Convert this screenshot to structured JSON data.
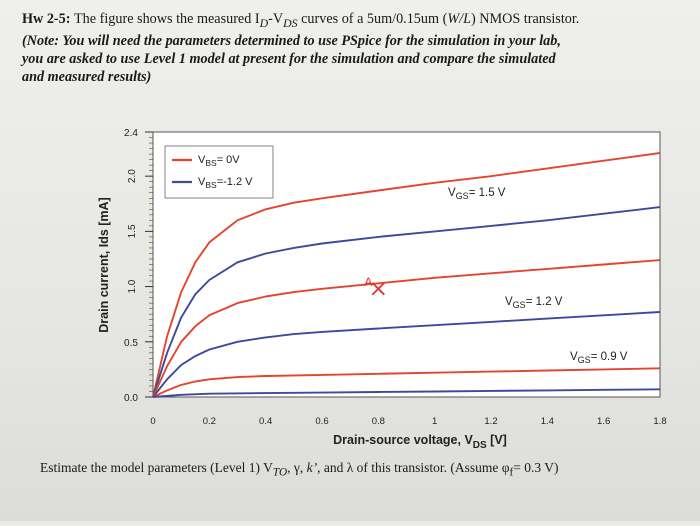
{
  "problem": {
    "label": "Hw 2-5:",
    "line1": "The figure shows the measured I",
    "id_sub": "D",
    "dash": "-V",
    "vds_sub": "DS",
    "line1_rest": " curves of a 5um/0.15um (",
    "wl": "W/L",
    "line1_end": ") NMOS transistor.",
    "note_line1": "(Note: You will need the parameters determined to use PSpice for the simulation in your lab,",
    "note_line2": "you are asked to use Level 1 model at present for the simulation and compare the simulated",
    "note_line3": "and measured results)"
  },
  "footer": {
    "text": "Estimate the model parameters (Level 1) V₀, γ, k′, and λ of this transistor. (Assume φf= 0.3 V)",
    "t1": "Estimate the model parameters (Level 1) V",
    "t1_sub": "TO",
    "t2": ", γ, ",
    "t3": "k’",
    "t4": ", and λ of this transistor. (Assume φ",
    "t4_sub": "f",
    "t5": "= 0.3 V)"
  },
  "chart_data": {
    "type": "line",
    "ylabel": "Drain current, Ids [mA]",
    "xlabel": "Drain-source voltage, V",
    "xlabel_sub": "DS",
    "xlabel_unit": " [V]",
    "xticks": [
      "0",
      "0.2",
      "0.4",
      "0.6",
      "0.8",
      "1",
      "1.2",
      "1.4",
      "1.6",
      "1.8"
    ],
    "yticks": [
      "0.0",
      "0.5",
      "1.0",
      "1.5",
      "2.0",
      "2.4"
    ],
    "xlim": [
      0,
      1.8
    ],
    "ylim": [
      0,
      2.4
    ],
    "legend": [
      {
        "label": "V",
        "sub": "BS",
        "val": "= 0V",
        "color": "#e3452f"
      },
      {
        "label": "V",
        "sub": "BS",
        "val": "=-1.2 V",
        "color": "#3d4a9c"
      }
    ],
    "annotations": [
      {
        "text": "V",
        "sub": "GS",
        "val": "= 1.5 V"
      },
      {
        "text": "V",
        "sub": "GS",
        "val": "= 1.2 V"
      },
      {
        "text": "V",
        "sub": "GS",
        "val": "= 0.9 V"
      },
      {
        "text": "A"
      }
    ],
    "series": [
      {
        "name": "VGS=1.5V VBS=0V",
        "color": "#e3452f",
        "x": [
          0,
          0.05,
          0.1,
          0.15,
          0.2,
          0.3,
          0.4,
          0.5,
          0.6,
          0.8,
          1.0,
          1.2,
          1.4,
          1.6,
          1.8
        ],
        "y": [
          0,
          0.55,
          0.95,
          1.22,
          1.4,
          1.6,
          1.7,
          1.76,
          1.8,
          1.87,
          1.94,
          2.0,
          2.07,
          2.14,
          2.21
        ]
      },
      {
        "name": "VGS=1.5V VBS=-1.2V",
        "color": "#3d4a9c",
        "x": [
          0,
          0.05,
          0.1,
          0.15,
          0.2,
          0.3,
          0.4,
          0.5,
          0.6,
          0.8,
          1.0,
          1.2,
          1.4,
          1.6,
          1.8
        ],
        "y": [
          0,
          0.4,
          0.72,
          0.93,
          1.06,
          1.22,
          1.3,
          1.35,
          1.39,
          1.45,
          1.5,
          1.55,
          1.6,
          1.66,
          1.72
        ]
      },
      {
        "name": "VGS=1.2V VBS=0V",
        "color": "#e3452f",
        "x": [
          0,
          0.05,
          0.1,
          0.15,
          0.2,
          0.3,
          0.4,
          0.5,
          0.6,
          0.8,
          1.0,
          1.2,
          1.4,
          1.6,
          1.8
        ],
        "y": [
          0,
          0.28,
          0.5,
          0.64,
          0.74,
          0.85,
          0.91,
          0.95,
          0.98,
          1.03,
          1.08,
          1.12,
          1.16,
          1.2,
          1.24
        ]
      },
      {
        "name": "VGS=1.2V VBS=-1.2V",
        "color": "#3d4a9c",
        "x": [
          0,
          0.05,
          0.1,
          0.15,
          0.2,
          0.3,
          0.4,
          0.5,
          0.6,
          0.8,
          1.0,
          1.2,
          1.4,
          1.6,
          1.8
        ],
        "y": [
          0,
          0.16,
          0.29,
          0.37,
          0.43,
          0.5,
          0.54,
          0.57,
          0.59,
          0.62,
          0.65,
          0.68,
          0.71,
          0.74,
          0.77
        ]
      },
      {
        "name": "VGS=0.9V VBS=0V",
        "color": "#e3452f",
        "x": [
          0,
          0.05,
          0.1,
          0.15,
          0.2,
          0.3,
          0.4,
          0.6,
          0.8,
          1.0,
          1.2,
          1.4,
          1.6,
          1.8
        ],
        "y": [
          0,
          0.06,
          0.11,
          0.14,
          0.16,
          0.18,
          0.19,
          0.2,
          0.21,
          0.22,
          0.23,
          0.24,
          0.25,
          0.26
        ]
      },
      {
        "name": "VGS=0.9V VBS=-1.2V",
        "color": "#3d4a9c",
        "x": [
          0,
          0.1,
          0.2,
          0.4,
          0.6,
          0.8,
          1.0,
          1.2,
          1.4,
          1.6,
          1.8
        ],
        "y": [
          0,
          0.02,
          0.03,
          0.035,
          0.04,
          0.045,
          0.05,
          0.055,
          0.06,
          0.065,
          0.07
        ]
      }
    ],
    "marker": {
      "x": 0.8,
      "y": 0.98
    }
  }
}
